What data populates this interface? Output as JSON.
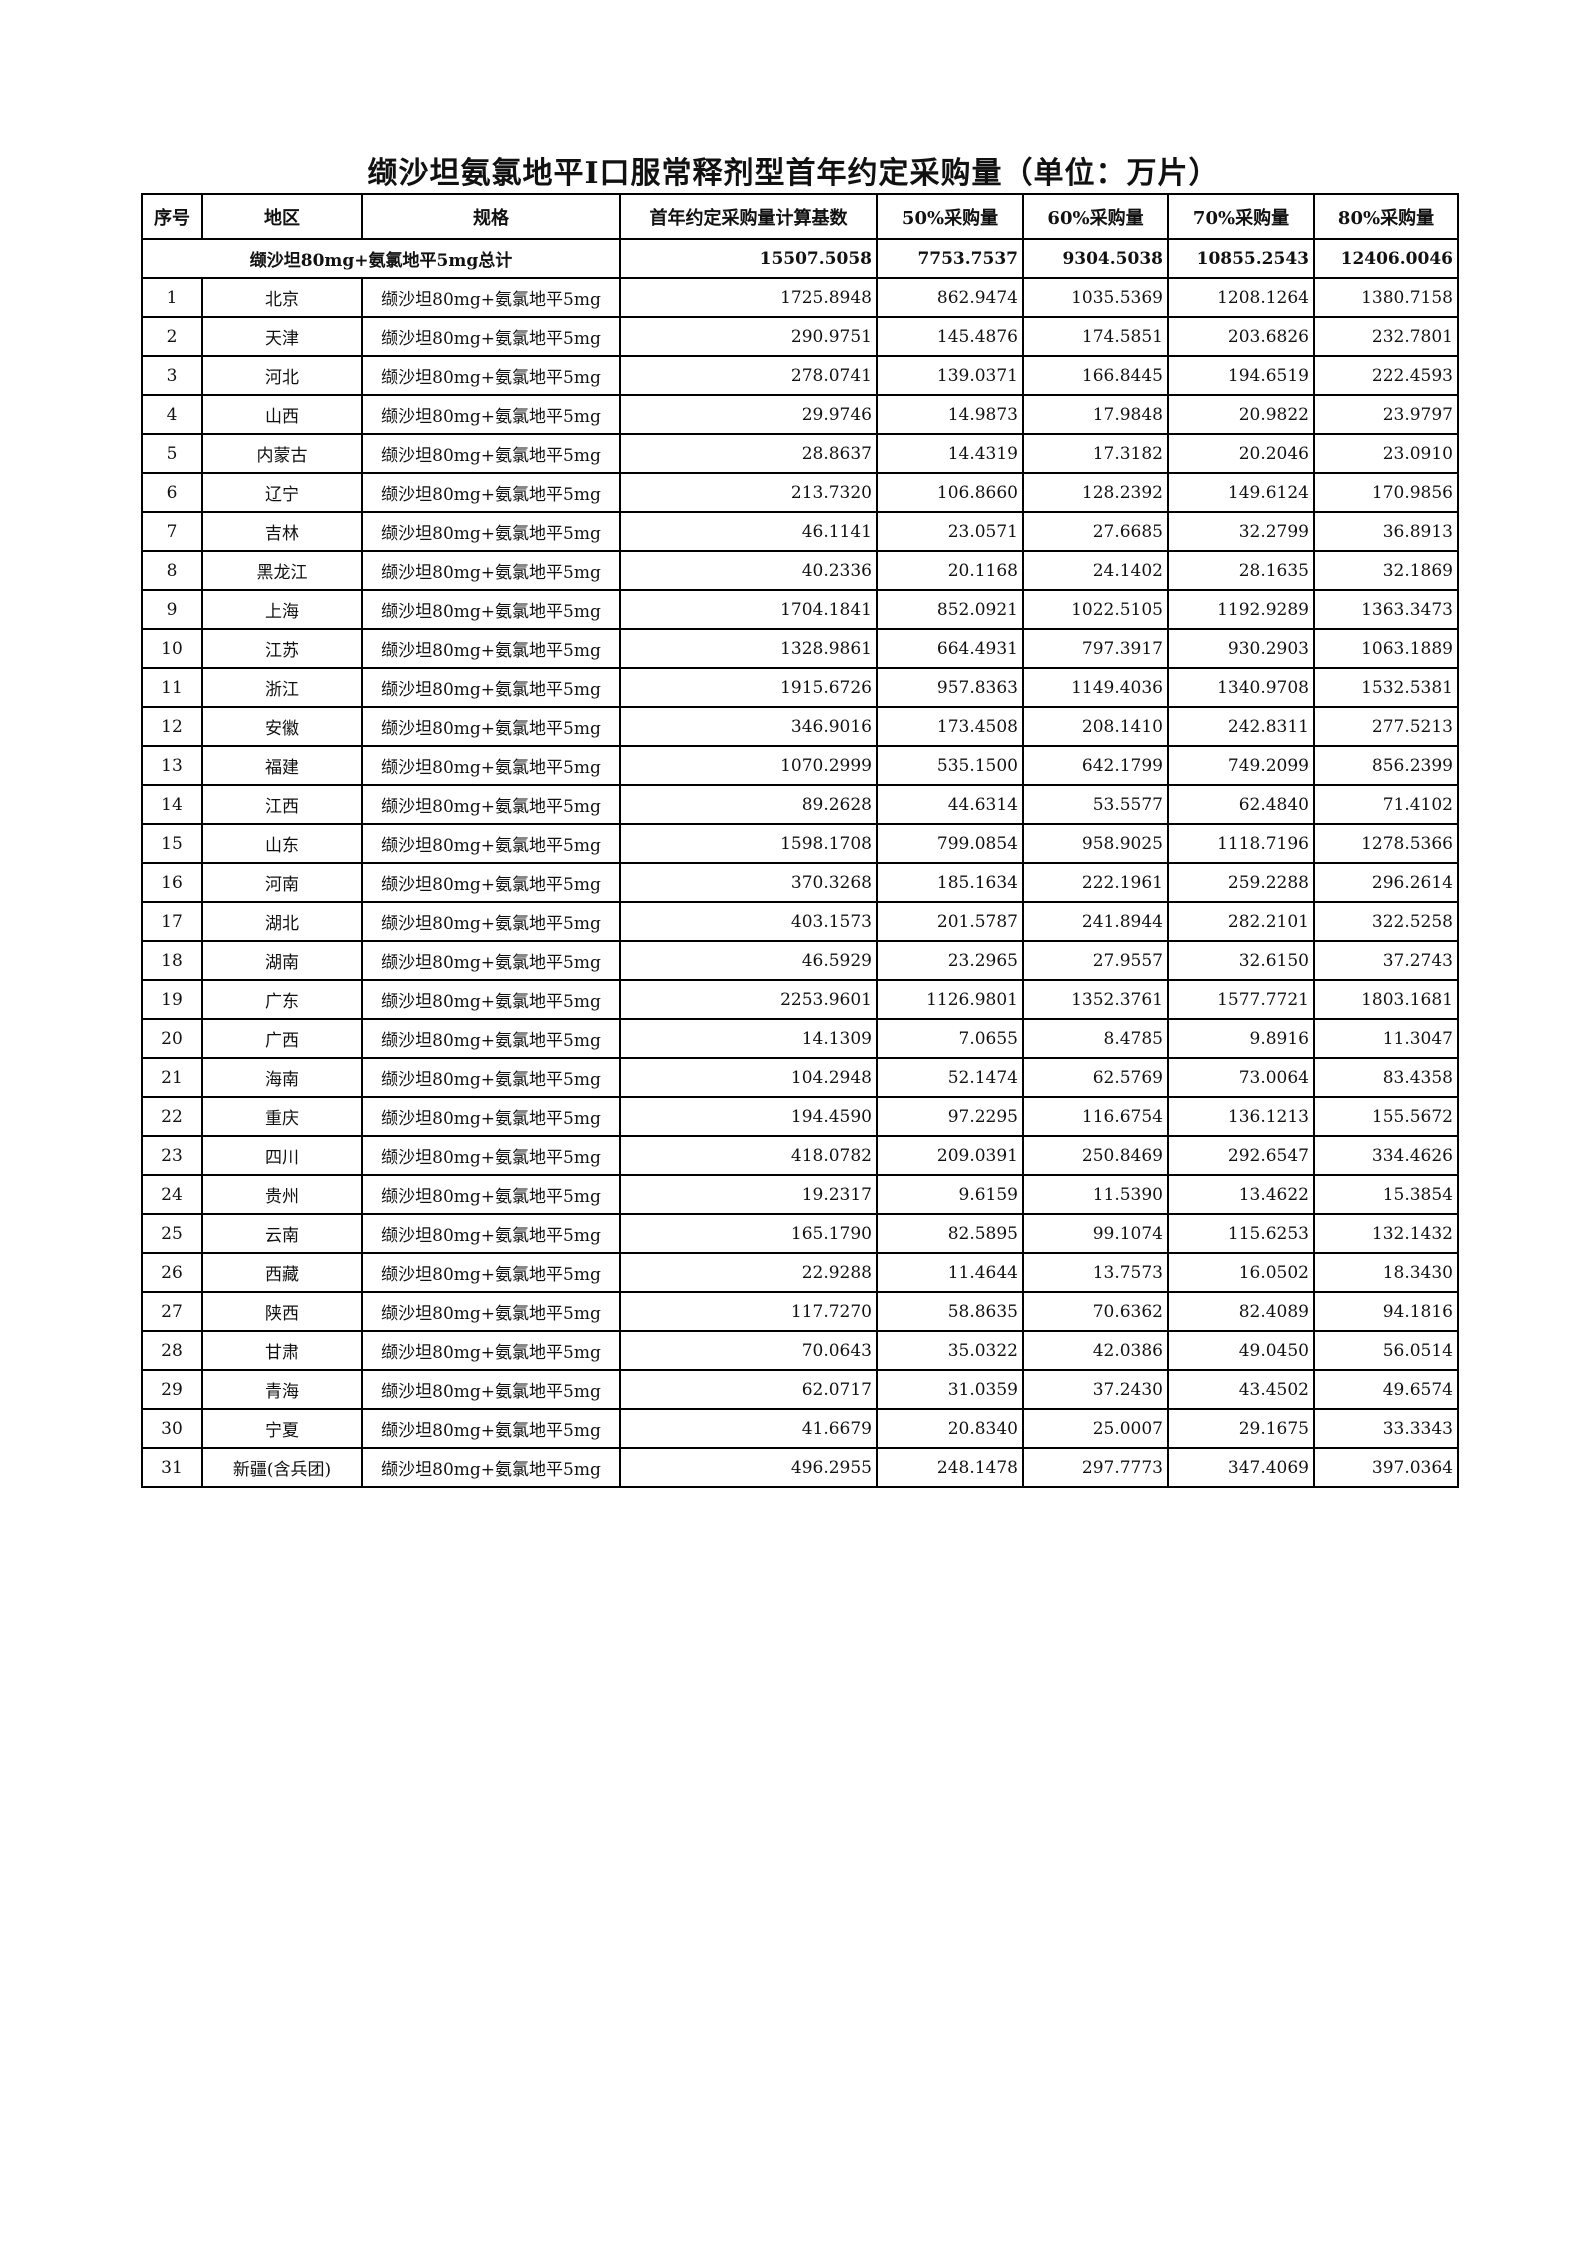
{
  "title": "缬沙坦氨氯地平Ⅰ口服常释剂型首年约定采购量（单位：万片）",
  "headers": [
    "序号",
    "地区",
    "规格",
    "首年约定采购量计算基数",
    "50%采购量",
    "60%采购量",
    "70%采购量",
    "80%采购量"
  ],
  "total": {
    "label": "缬沙坦80mg+氨氯地平5mg总计",
    "values": [
      "15507.5058",
      "7753.7537",
      "9304.5038",
      "10855.2543",
      "12406.0046"
    ]
  },
  "rows": [
    [
      "1",
      "北京",
      "缬沙坦80mg+氨氯地平5mg",
      "1725.8948",
      "862.9474",
      "1035.5369",
      "1208.1264",
      "1380.7158"
    ],
    [
      "2",
      "天津",
      "缬沙坦80mg+氨氯地平5mg",
      "290.9751",
      "145.4876",
      "174.5851",
      "203.6826",
      "232.7801"
    ],
    [
      "3",
      "河北",
      "缬沙坦80mg+氨氯地平5mg",
      "278.0741",
      "139.0371",
      "166.8445",
      "194.6519",
      "222.4593"
    ],
    [
      "4",
      "山西",
      "缬沙坦80mg+氨氯地平5mg",
      "29.9746",
      "14.9873",
      "17.9848",
      "20.9822",
      "23.9797"
    ],
    [
      "5",
      "内蒙古",
      "缬沙坦80mg+氨氯地平5mg",
      "28.8637",
      "14.4319",
      "17.3182",
      "20.2046",
      "23.0910"
    ],
    [
      "6",
      "辽宁",
      "缬沙坦80mg+氨氯地平5mg",
      "213.7320",
      "106.8660",
      "128.2392",
      "149.6124",
      "170.9856"
    ],
    [
      "7",
      "吉林",
      "缬沙坦80mg+氨氯地平5mg",
      "46.1141",
      "23.0571",
      "27.6685",
      "32.2799",
      "36.8913"
    ],
    [
      "8",
      "黑龙江",
      "缬沙坦80mg+氨氯地平5mg",
      "40.2336",
      "20.1168",
      "24.1402",
      "28.1635",
      "32.1869"
    ],
    [
      "9",
      "上海",
      "缬沙坦80mg+氨氯地平5mg",
      "1704.1841",
      "852.0921",
      "1022.5105",
      "1192.9289",
      "1363.3473"
    ],
    [
      "10",
      "江苏",
      "缬沙坦80mg+氨氯地平5mg",
      "1328.9861",
      "664.4931",
      "797.3917",
      "930.2903",
      "1063.1889"
    ],
    [
      "11",
      "浙江",
      "缬沙坦80mg+氨氯地平5mg",
      "1915.6726",
      "957.8363",
      "1149.4036",
      "1340.9708",
      "1532.5381"
    ],
    [
      "12",
      "安徽",
      "缬沙坦80mg+氨氯地平5mg",
      "346.9016",
      "173.4508",
      "208.1410",
      "242.8311",
      "277.5213"
    ],
    [
      "13",
      "福建",
      "缬沙坦80mg+氨氯地平5mg",
      "1070.2999",
      "535.1500",
      "642.1799",
      "749.2099",
      "856.2399"
    ],
    [
      "14",
      "江西",
      "缬沙坦80mg+氨氯地平5mg",
      "89.2628",
      "44.6314",
      "53.5577",
      "62.4840",
      "71.4102"
    ],
    [
      "15",
      "山东",
      "缬沙坦80mg+氨氯地平5mg",
      "1598.1708",
      "799.0854",
      "958.9025",
      "1118.7196",
      "1278.5366"
    ],
    [
      "16",
      "河南",
      "缬沙坦80mg+氨氯地平5mg",
      "370.3268",
      "185.1634",
      "222.1961",
      "259.2288",
      "296.2614"
    ],
    [
      "17",
      "湖北",
      "缬沙坦80mg+氨氯地平5mg",
      "403.1573",
      "201.5787",
      "241.8944",
      "282.2101",
      "322.5258"
    ],
    [
      "18",
      "湖南",
      "缬沙坦80mg+氨氯地平5mg",
      "46.5929",
      "23.2965",
      "27.9557",
      "32.6150",
      "37.2743"
    ],
    [
      "19",
      "广东",
      "缬沙坦80mg+氨氯地平5mg",
      "2253.9601",
      "1126.9801",
      "1352.3761",
      "1577.7721",
      "1803.1681"
    ],
    [
      "20",
      "广西",
      "缬沙坦80mg+氨氯地平5mg",
      "14.1309",
      "7.0655",
      "8.4785",
      "9.8916",
      "11.3047"
    ],
    [
      "21",
      "海南",
      "缬沙坦80mg+氨氯地平5mg",
      "104.2948",
      "52.1474",
      "62.5769",
      "73.0064",
      "83.4358"
    ],
    [
      "22",
      "重庆",
      "缬沙坦80mg+氨氯地平5mg",
      "194.4590",
      "97.2295",
      "116.6754",
      "136.1213",
      "155.5672"
    ],
    [
      "23",
      "四川",
      "缬沙坦80mg+氨氯地平5mg",
      "418.0782",
      "209.0391",
      "250.8469",
      "292.6547",
      "334.4626"
    ],
    [
      "24",
      "贵州",
      "缬沙坦80mg+氨氯地平5mg",
      "19.2317",
      "9.6159",
      "11.5390",
      "13.4622",
      "15.3854"
    ],
    [
      "25",
      "云南",
      "缬沙坦80mg+氨氯地平5mg",
      "165.1790",
      "82.5895",
      "99.1074",
      "115.6253",
      "132.1432"
    ],
    [
      "26",
      "西藏",
      "缬沙坦80mg+氨氯地平5mg",
      "22.9288",
      "11.4644",
      "13.7573",
      "16.0502",
      "18.3430"
    ],
    [
      "27",
      "陕西",
      "缬沙坦80mg+氨氯地平5mg",
      "117.7270",
      "58.8635",
      "70.6362",
      "82.4089",
      "94.1816"
    ],
    [
      "28",
      "甘肃",
      "缬沙坦80mg+氨氯地平5mg",
      "70.0643",
      "35.0322",
      "42.0386",
      "49.0450",
      "56.0514"
    ],
    [
      "29",
      "青海",
      "缬沙坦80mg+氨氯地平5mg",
      "62.0717",
      "31.0359",
      "37.2430",
      "43.4502",
      "49.6574"
    ],
    [
      "30",
      "宁夏",
      "缬沙坦80mg+氨氯地平5mg",
      "41.6679",
      "20.8340",
      "25.0007",
      "29.1675",
      "33.3343"
    ],
    [
      "31",
      "新疆(含兵团)",
      "缬沙坦80mg+氨氯地平5mg",
      "496.2955",
      "248.1478",
      "297.7773",
      "347.4069",
      "397.0364"
    ]
  ]
}
